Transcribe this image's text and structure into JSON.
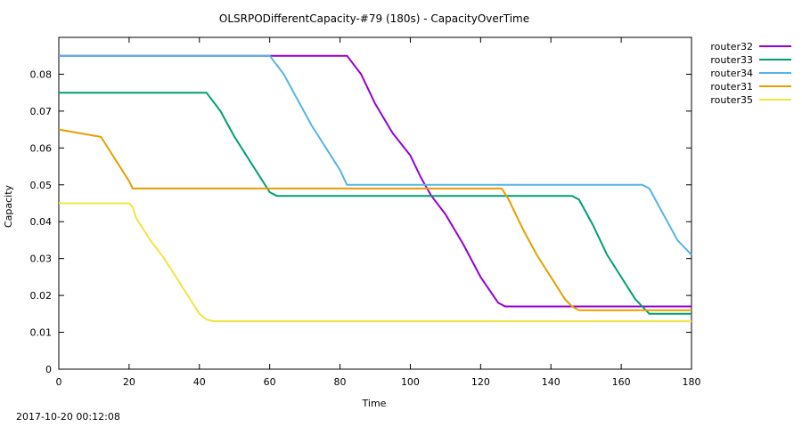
{
  "footer_timestamp": "2017-10-20 00:12:08",
  "chart_data": {
    "type": "line",
    "title": "OLSRPODifferentCapacity-#79 (180s) - CapacityOverTime",
    "xlabel": "Time",
    "ylabel": "Capacity",
    "xlim": [
      0,
      180
    ],
    "ylim": [
      0,
      0.09
    ],
    "xticks": [
      0,
      20,
      40,
      60,
      80,
      100,
      120,
      140,
      160,
      180
    ],
    "yticks": [
      0,
      0.01,
      0.02,
      0.03,
      0.04,
      0.05,
      0.06,
      0.07,
      0.08
    ],
    "grid": false,
    "legend_position": "top-right-outside",
    "series": [
      {
        "name": "router32",
        "color": "#9400d3",
        "points": [
          [
            0,
            0.085
          ],
          [
            82,
            0.085
          ],
          [
            86,
            0.08
          ],
          [
            90,
            0.072
          ],
          [
            95,
            0.064
          ],
          [
            100,
            0.058
          ],
          [
            103,
            0.052
          ],
          [
            106,
            0.047
          ],
          [
            110,
            0.042
          ],
          [
            115,
            0.034
          ],
          [
            120,
            0.025
          ],
          [
            125,
            0.018
          ],
          [
            127,
            0.017
          ],
          [
            180,
            0.017
          ]
        ]
      },
      {
        "name": "router33",
        "color": "#009e73",
        "points": [
          [
            0,
            0.075
          ],
          [
            42,
            0.075
          ],
          [
            46,
            0.07
          ],
          [
            50,
            0.063
          ],
          [
            54,
            0.057
          ],
          [
            58,
            0.051
          ],
          [
            60,
            0.048
          ],
          [
            62,
            0.047
          ],
          [
            146,
            0.047
          ],
          [
            148,
            0.046
          ],
          [
            152,
            0.039
          ],
          [
            156,
            0.031
          ],
          [
            160,
            0.025
          ],
          [
            164,
            0.019
          ],
          [
            168,
            0.015
          ],
          [
            180,
            0.015
          ]
        ]
      },
      {
        "name": "router34",
        "color": "#56b4e9",
        "points": [
          [
            0,
            0.085
          ],
          [
            60,
            0.085
          ],
          [
            64,
            0.08
          ],
          [
            68,
            0.073
          ],
          [
            72,
            0.066
          ],
          [
            76,
            0.06
          ],
          [
            80,
            0.054
          ],
          [
            82,
            0.05
          ],
          [
            166,
            0.05
          ],
          [
            168,
            0.049
          ],
          [
            172,
            0.042
          ],
          [
            176,
            0.035
          ],
          [
            180,
            0.031
          ]
        ]
      },
      {
        "name": "router31",
        "color": "#e69f00",
        "points": [
          [
            0,
            0.065
          ],
          [
            12,
            0.063
          ],
          [
            16,
            0.057
          ],
          [
            20,
            0.051
          ],
          [
            21,
            0.049
          ],
          [
            126,
            0.049
          ],
          [
            128,
            0.046
          ],
          [
            132,
            0.038
          ],
          [
            136,
            0.031
          ],
          [
            140,
            0.025
          ],
          [
            144,
            0.019
          ],
          [
            146,
            0.017
          ],
          [
            148,
            0.016
          ],
          [
            180,
            0.016
          ]
        ]
      },
      {
        "name": "router35",
        "color": "#f0e442",
        "points": [
          [
            0,
            0.045
          ],
          [
            20,
            0.045
          ],
          [
            21,
            0.044
          ],
          [
            22,
            0.041
          ],
          [
            24,
            0.038
          ],
          [
            26,
            0.035
          ],
          [
            30,
            0.03
          ],
          [
            34,
            0.024
          ],
          [
            38,
            0.018
          ],
          [
            40,
            0.015
          ],
          [
            42,
            0.0135
          ],
          [
            44,
            0.013
          ],
          [
            180,
            0.013
          ]
        ]
      }
    ]
  }
}
